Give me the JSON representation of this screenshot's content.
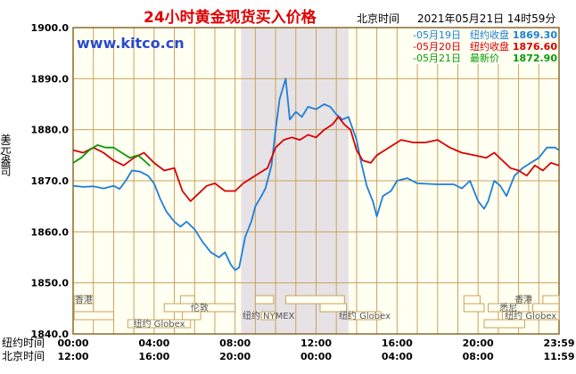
{
  "header": {
    "title": "24小时黄金现货买入价格",
    "timezone_label": "北京时间",
    "timestamp": "2021年05月21日 14时59分",
    "watermark": "www.kitco.cn"
  },
  "legend": [
    {
      "date": "05月19日",
      "label": "纽约收盘",
      "value": "1869.30",
      "color": "#1e7fd8"
    },
    {
      "date": "05月20日",
      "label": "纽约收盘",
      "value": "1876.60",
      "color": "#d80000"
    },
    {
      "date": "05月21日",
      "label": "最新价",
      "value": "1872.90",
      "color": "#0a9a0a"
    }
  ],
  "y_axis_title": "美元/盎司",
  "market_labels": [
    "香港",
    "纽约 Globex",
    "伦敦",
    "纽约 NYMEX",
    "纽约 Globex",
    "香港",
    "悉尼",
    "纽约 Globex"
  ],
  "axis_rows": [
    {
      "label": "纽约时间",
      "ticks": [
        "00:00",
        "04:00",
        "08:00",
        "12:00",
        "16:00",
        "20:00",
        "23:59"
      ]
    },
    {
      "label": "北京时间",
      "ticks": [
        "12:00",
        "16:00",
        "20:00",
        "00:00",
        "04:00",
        "08:00",
        "11:59"
      ]
    }
  ],
  "colors": {
    "background": "#fffff2",
    "grid": "#c9a35a",
    "border": "#8a6a2a",
    "shade": "#e6e2e6",
    "title": "#e00000",
    "watermark": "#2a4acd"
  },
  "chart_data": {
    "type": "line",
    "ylim": [
      1840,
      1900
    ],
    "y_ticks": [
      1900.0,
      1890.0,
      1880.0,
      1870.0,
      1860.0,
      1850.0,
      1840.0
    ],
    "xlim_hours": [
      0,
      24
    ],
    "nymex_session_hours": [
      8.3,
      13.6
    ],
    "series": [
      {
        "name": "05月19日",
        "color": "#1e7fd8",
        "points": [
          [
            0,
            1869.0
          ],
          [
            0.5,
            1868.8
          ],
          [
            1,
            1868.9
          ],
          [
            1.5,
            1868.5
          ],
          [
            2,
            1869.0
          ],
          [
            2.3,
            1868.4
          ],
          [
            2.6,
            1870.0
          ],
          [
            2.9,
            1872.0
          ],
          [
            3.3,
            1871.8
          ],
          [
            3.7,
            1871.0
          ],
          [
            4.0,
            1869.5
          ],
          [
            4.3,
            1866.5
          ],
          [
            4.6,
            1864.0
          ],
          [
            5.0,
            1862.0
          ],
          [
            5.3,
            1861.0
          ],
          [
            5.6,
            1862.0
          ],
          [
            6.0,
            1860.5
          ],
          [
            6.4,
            1858.0
          ],
          [
            6.8,
            1856.0
          ],
          [
            7.2,
            1855.0
          ],
          [
            7.5,
            1856.0
          ],
          [
            7.8,
            1853.5
          ],
          [
            8.0,
            1852.5
          ],
          [
            8.2,
            1853.0
          ],
          [
            8.5,
            1859.0
          ],
          [
            8.8,
            1862.0
          ],
          [
            9.0,
            1865.0
          ],
          [
            9.3,
            1867.0
          ],
          [
            9.5,
            1868.5
          ],
          [
            9.8,
            1873.0
          ],
          [
            10.0,
            1880.0
          ],
          [
            10.2,
            1886.0
          ],
          [
            10.5,
            1890.0
          ],
          [
            10.7,
            1882.0
          ],
          [
            11.0,
            1883.5
          ],
          [
            11.3,
            1882.5
          ],
          [
            11.6,
            1884.5
          ],
          [
            12.0,
            1884.0
          ],
          [
            12.4,
            1885.0
          ],
          [
            12.7,
            1884.5
          ],
          [
            13.0,
            1883.0
          ],
          [
            13.3,
            1882.0
          ],
          [
            13.6,
            1882.5
          ],
          [
            14.0,
            1878.0
          ],
          [
            14.2,
            1874.0
          ],
          [
            14.5,
            1869.0
          ],
          [
            14.8,
            1866.0
          ],
          [
            15.0,
            1863.0
          ],
          [
            15.3,
            1867.0
          ],
          [
            15.7,
            1868.0
          ],
          [
            16.0,
            1870.0
          ],
          [
            16.5,
            1870.5
          ],
          [
            17.0,
            1869.5
          ],
          [
            18.0,
            1869.3
          ],
          [
            18.8,
            1869.3
          ],
          [
            19.2,
            1868.5
          ],
          [
            19.6,
            1870.0
          ],
          [
            20.0,
            1866.0
          ],
          [
            20.3,
            1864.5
          ],
          [
            20.5,
            1866.0
          ],
          [
            20.8,
            1870.0
          ],
          [
            21.1,
            1869.0
          ],
          [
            21.4,
            1867.0
          ],
          [
            21.8,
            1871.0
          ],
          [
            22.2,
            1872.5
          ],
          [
            22.6,
            1873.5
          ],
          [
            23.0,
            1874.5
          ],
          [
            23.4,
            1876.5
          ],
          [
            23.8,
            1876.5
          ],
          [
            24.0,
            1876.0
          ]
        ]
      },
      {
        "name": "05月20日",
        "color": "#d80000",
        "points": [
          [
            0,
            1876.0
          ],
          [
            0.5,
            1875.5
          ],
          [
            1,
            1876.5
          ],
          [
            1.5,
            1875.5
          ],
          [
            2,
            1874.0
          ],
          [
            2.5,
            1873.0
          ],
          [
            3,
            1874.5
          ],
          [
            3.5,
            1875.5
          ],
          [
            4.0,
            1873.5
          ],
          [
            4.5,
            1872.0
          ],
          [
            5.0,
            1872.5
          ],
          [
            5.4,
            1868.0
          ],
          [
            5.8,
            1866.0
          ],
          [
            6.2,
            1867.5
          ],
          [
            6.6,
            1869.0
          ],
          [
            7.0,
            1869.5
          ],
          [
            7.5,
            1868.0
          ],
          [
            8.0,
            1868.0
          ],
          [
            8.4,
            1869.5
          ],
          [
            8.8,
            1870.5
          ],
          [
            9.2,
            1871.5
          ],
          [
            9.6,
            1872.5
          ],
          [
            10.0,
            1876.5
          ],
          [
            10.4,
            1878.0
          ],
          [
            10.8,
            1878.5
          ],
          [
            11.2,
            1878.0
          ],
          [
            11.6,
            1879.0
          ],
          [
            12.0,
            1878.5
          ],
          [
            12.4,
            1880.0
          ],
          [
            12.8,
            1881.0
          ],
          [
            13.1,
            1882.5
          ],
          [
            13.4,
            1881.0
          ],
          [
            13.7,
            1880.0
          ],
          [
            14.0,
            1876.0
          ],
          [
            14.3,
            1874.0
          ],
          [
            14.7,
            1873.5
          ],
          [
            15.0,
            1875.0
          ],
          [
            15.4,
            1876.0
          ],
          [
            15.8,
            1877.0
          ],
          [
            16.2,
            1878.0
          ],
          [
            16.8,
            1877.5
          ],
          [
            17.4,
            1877.5
          ],
          [
            18.0,
            1878.0
          ],
          [
            18.6,
            1876.5
          ],
          [
            19.2,
            1875.5
          ],
          [
            19.8,
            1875.0
          ],
          [
            20.4,
            1874.5
          ],
          [
            20.8,
            1875.5
          ],
          [
            21.2,
            1874.0
          ],
          [
            21.6,
            1872.5
          ],
          [
            22.0,
            1872.0
          ],
          [
            22.4,
            1871.0
          ],
          [
            22.8,
            1873.0
          ],
          [
            23.2,
            1872.0
          ],
          [
            23.6,
            1873.5
          ],
          [
            24.0,
            1873.0
          ]
        ]
      },
      {
        "name": "05月21日",
        "color": "#0a9a0a",
        "points": [
          [
            0,
            1873.5
          ],
          [
            0.4,
            1874.5
          ],
          [
            0.8,
            1876.0
          ],
          [
            1.2,
            1877.0
          ],
          [
            1.6,
            1876.5
          ],
          [
            2.0,
            1876.5
          ],
          [
            2.4,
            1875.5
          ],
          [
            2.8,
            1874.5
          ],
          [
            3.2,
            1875.0
          ],
          [
            3.5,
            1874.0
          ],
          [
            3.8,
            1872.9
          ]
        ]
      }
    ]
  }
}
